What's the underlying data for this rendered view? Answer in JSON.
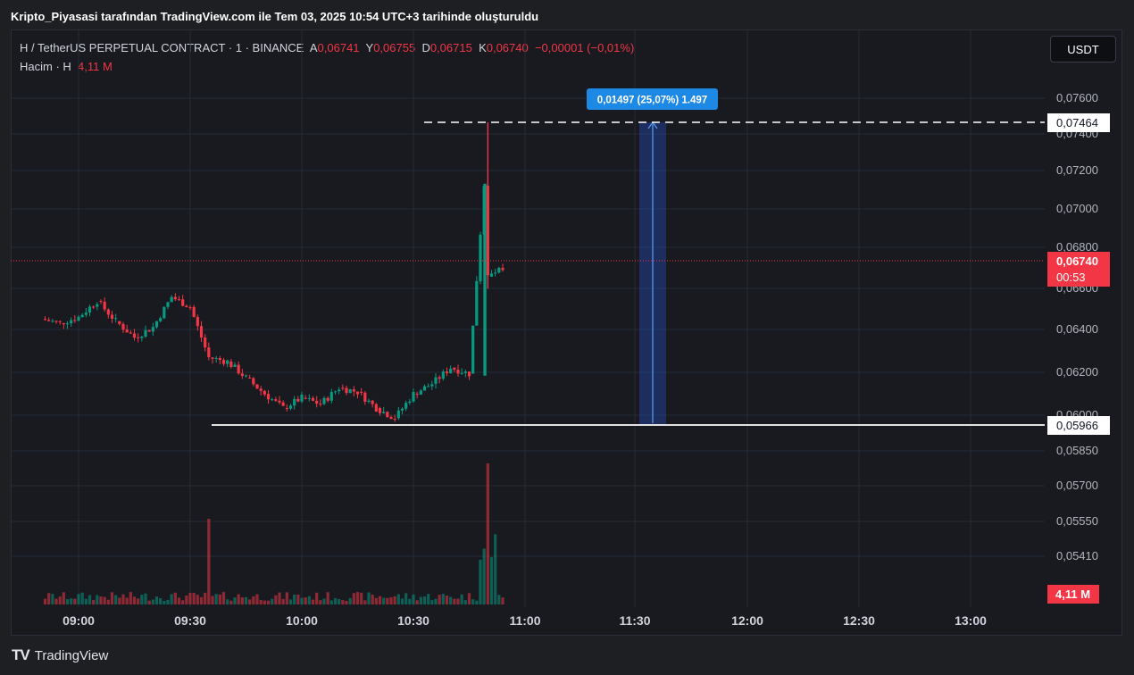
{
  "header": {
    "title": "Kripto_Piyasasi tarafından TradingView.com ile Tem 03, 2025 10:54 UTC+3 tarihinde oluşturuldu"
  },
  "legend": {
    "symbol": "H / TetherUS PERPETUAL CONTRACT · 1 · BINANCE",
    "open_label": "A",
    "open": "0,06741",
    "high_label": "Y",
    "high": "0,06755",
    "low_label": "D",
    "low": "0,06715",
    "close_label": "K",
    "close": "0,06740",
    "change": "−0,00001 (−0,01%)",
    "volume_label": "Hacim · H",
    "volume": "4,11 M"
  },
  "currency_button": "USDT",
  "price_tag": {
    "price": "0,06740",
    "countdown": "00:53"
  },
  "high_tag": "0,07464",
  "low_tag": "0,05966",
  "volume_tag": "4,11 M",
  "measure_label": "0,01497 (25,07%) 1.497",
  "footer": {
    "logo_text": "TradingView",
    "logo_mark": "TV"
  },
  "colors": {
    "up": "#089981",
    "down": "#f23645",
    "measure": "#2962ff",
    "background": "#181a20"
  },
  "chart_data": {
    "type": "candlestick",
    "x_ticks": [
      "09:00",
      "09:30",
      "10:00",
      "10:30",
      "11:00",
      "11:30",
      "12:00",
      "12:30",
      "13:00"
    ],
    "y_ticks": [
      "0,07600",
      "0,07400",
      "0,07200",
      "0,07000",
      "0,06800",
      "0,06600",
      "0,06400",
      "0,06200",
      "0,06000",
      "0,05850",
      "0,05700",
      "0,05550",
      "0,05410"
    ],
    "series": [
      {
        "name": "H / TetherUS PERPETUAL CONTRACT",
        "points": [
          [
            "08:50",
            0.0649
          ],
          [
            "08:55",
            0.0647
          ],
          [
            "09:00",
            0.065
          ],
          [
            "09:05",
            0.0658
          ],
          [
            "09:10",
            0.0648
          ],
          [
            "09:15",
            0.064
          ],
          [
            "09:20",
            0.0645
          ],
          [
            "09:25",
            0.066
          ],
          [
            "09:30",
            0.0655
          ],
          [
            "09:35",
            0.063
          ],
          [
            "09:40",
            0.0628
          ],
          [
            "09:45",
            0.062
          ],
          [
            "09:50",
            0.0612
          ],
          [
            "09:55",
            0.0605
          ],
          [
            "10:00",
            0.061
          ],
          [
            "10:05",
            0.0607
          ],
          [
            "10:10",
            0.0615
          ],
          [
            "10:15",
            0.0613
          ],
          [
            "10:20",
            0.0605
          ],
          [
            "10:25",
            0.06
          ],
          [
            "10:30",
            0.0612
          ],
          [
            "10:35",
            0.0617
          ],
          [
            "10:40",
            0.0625
          ],
          [
            "10:45",
            0.0622
          ],
          [
            "10:49",
            0.0715
          ],
          [
            "10:50",
            0.067
          ],
          [
            "10:54",
            0.0674
          ]
        ]
      }
    ],
    "volume": {
      "peaks": [
        {
          "time": "09:35",
          "value": "peak"
        },
        {
          "time": "10:50",
          "value": "highest"
        }
      ],
      "last": "4,11 M"
    },
    "levels": {
      "high": 0.07464,
      "low": 0.05966,
      "last": 0.0674
    },
    "measure": {
      "from": 0.05966,
      "to": 0.07464,
      "change": 0.01497,
      "percent": 25.07,
      "ticks": 1497
    },
    "grid": true,
    "legend_position": "top-left"
  }
}
